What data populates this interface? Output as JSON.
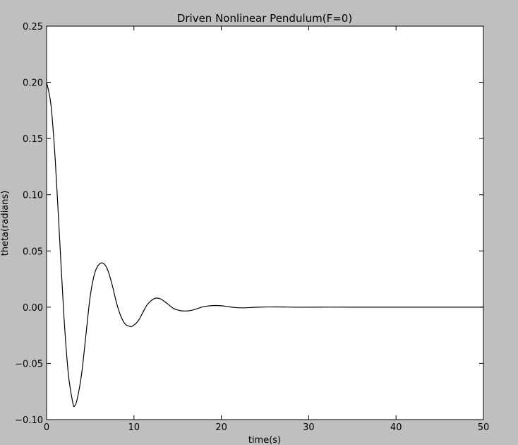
{
  "chart_data": {
    "type": "line",
    "title": "Driven Nonlinear Pendulum(F=0)",
    "xlabel": "time(s)",
    "ylabel": "theta(radians)",
    "xlim": [
      0,
      50
    ],
    "ylim": [
      -0.1,
      0.25
    ],
    "xticks": [
      "0",
      "10",
      "20",
      "30",
      "40",
      "50"
    ],
    "yticks": [
      "0.25",
      "0.20",
      "0.15",
      "0.10",
      "0.05",
      "0.00",
      "−0.05",
      "−0.10"
    ],
    "grid": false,
    "series": [
      {
        "color": "#000000",
        "x": [
          0,
          0.5,
          1.0,
          1.5,
          2.0,
          2.5,
          3.0,
          3.2,
          3.5,
          4.0,
          4.5,
          5.0,
          5.5,
          6.0,
          6.5,
          7.0,
          7.5,
          8.0,
          8.5,
          9.0,
          9.5,
          9.8,
          10.5,
          11.0,
          11.5,
          12.0,
          12.5,
          13.0,
          13.5,
          14.0,
          14.5,
          15.0,
          15.5,
          16.2,
          17.0,
          18.0,
          19.4,
          20.5,
          21.5,
          22.6,
          24.0,
          25.8,
          27.5,
          29.0,
          32.0,
          35.0,
          40.0,
          45.0,
          50.0
        ],
        "y": [
          0.2,
          0.18,
          0.13,
          0.06,
          -0.01,
          -0.06,
          -0.085,
          -0.088,
          -0.082,
          -0.06,
          -0.025,
          0.01,
          0.03,
          0.038,
          0.039,
          0.033,
          0.02,
          0.004,
          -0.008,
          -0.015,
          -0.017,
          -0.017,
          -0.012,
          -0.005,
          0.002,
          0.006,
          0.008,
          0.0075,
          0.005,
          0.002,
          -0.001,
          -0.0025,
          -0.0033,
          -0.0033,
          -0.002,
          0.0005,
          0.0015,
          0.0008,
          -0.0003,
          -0.0006,
          -0.0001,
          0.0002,
          0.0001,
          -5e-05,
          3e-05,
          0,
          0,
          0,
          0
        ]
      }
    ]
  }
}
